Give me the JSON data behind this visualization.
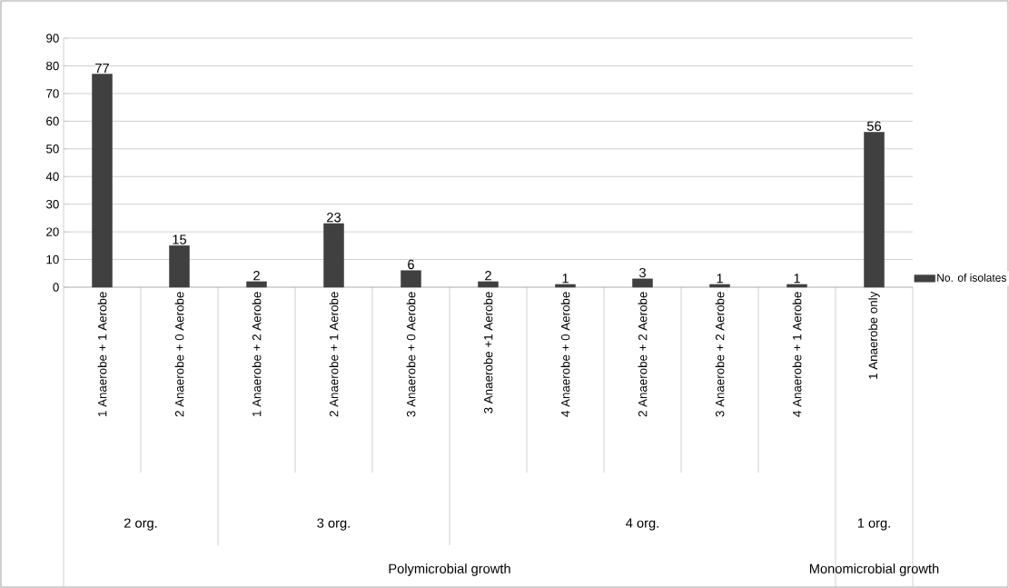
{
  "chart_data": {
    "type": "bar",
    "categories": [
      "1 Anaerobe + 1 Aerobe",
      "2 Anaerobe + 0 Aerobe",
      "1 Anaerobe + 2 Aerobe",
      "2 Anaerobe + 1 Aerobe",
      "3 Anaerobe + 0 Aerobe",
      "3 Anaerobe +1 Aerobe",
      "4 Anaerobe + 0 Aerobe",
      "2 Anaerobe + 2 Aerobe",
      "3 Anaerobe + 2 Aerobe",
      "4 Anaerobe + 1 Aerobe",
      "1 Anaerobe only"
    ],
    "series": [
      {
        "name": "No. of isolates",
        "color": "#404040",
        "values": [
          77,
          15,
          2,
          23,
          6,
          2,
          1,
          3,
          1,
          1,
          56
        ]
      }
    ],
    "ylim": [
      0,
      90
    ],
    "yticks": [
      0,
      10,
      20,
      30,
      40,
      50,
      60,
      70,
      80,
      90
    ],
    "grid": "y",
    "legend": "right",
    "data_labels": true,
    "annotations": [
      "2 org.",
      "3 org.",
      "4 org.",
      "1 org.",
      "Polymicrobial growth",
      "Monomicrobial growth"
    ]
  }
}
